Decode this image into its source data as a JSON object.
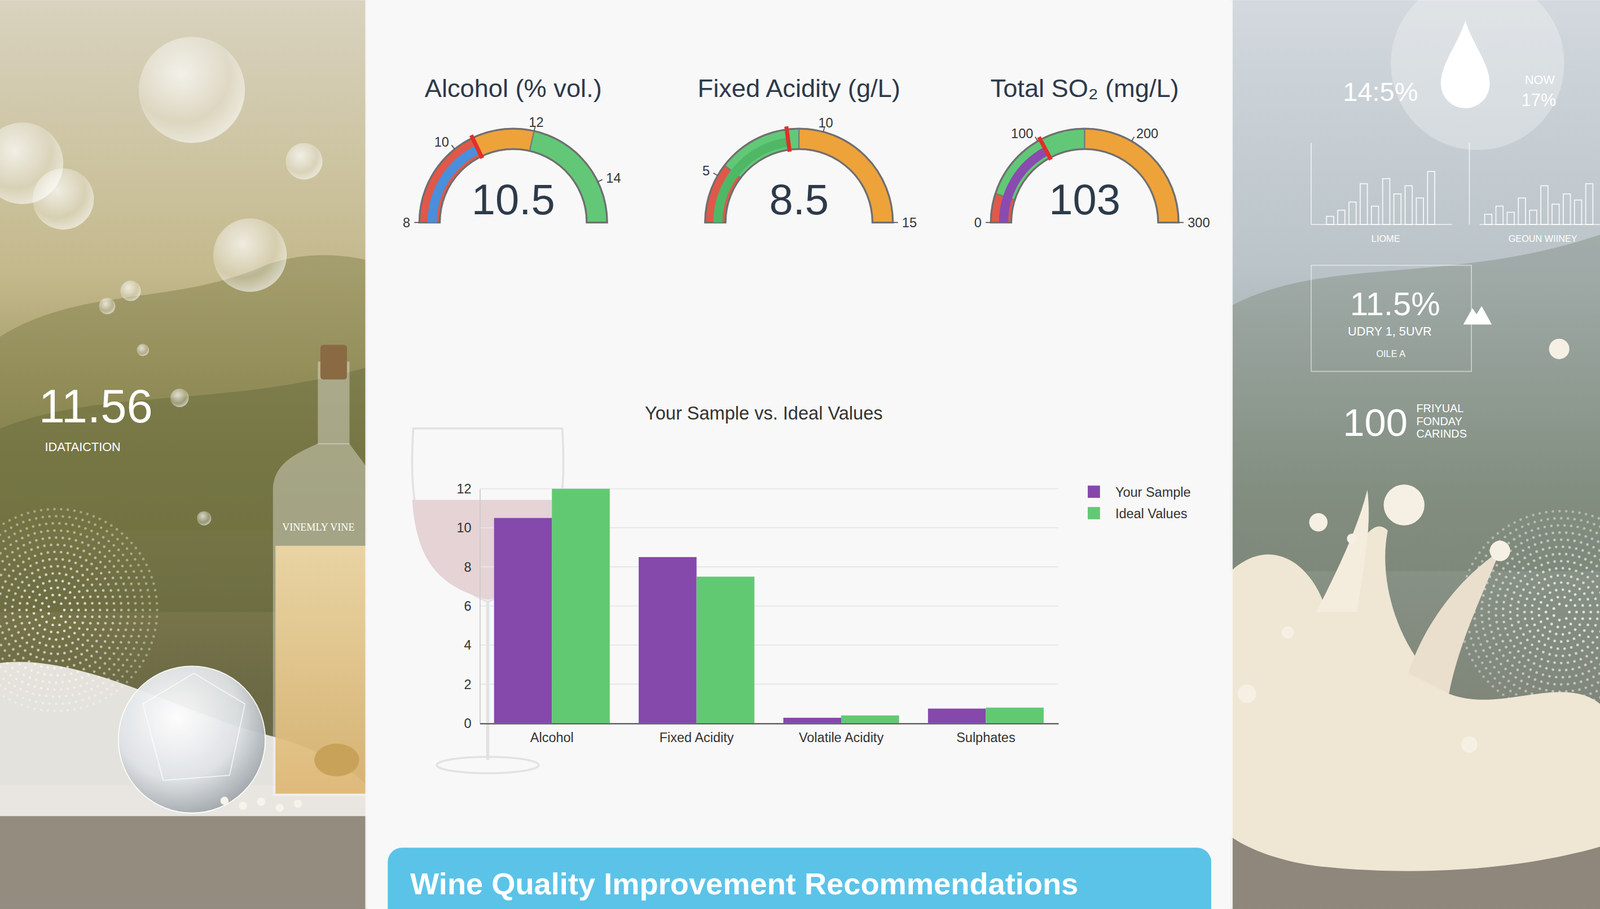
{
  "chart_data": [
    {
      "type": "gauge",
      "title": "Alcohol (% vol.)",
      "value": 10.5,
      "ylim": [
        8,
        15
      ],
      "yticks": [
        8,
        10,
        12,
        14
      ],
      "color": "#4a8fdc",
      "bands": [
        {
          "from": 8,
          "to": 10.5,
          "color": "#e0584a"
        },
        {
          "from": 10.5,
          "to": 12,
          "color": "#eea23a"
        },
        {
          "from": 12,
          "to": 15,
          "color": "#62c877"
        }
      ]
    },
    {
      "type": "gauge",
      "title": "Fixed Acidity (g/L)",
      "value": 8.5,
      "ylim": [
        3,
        15
      ],
      "yticks": [
        5,
        10,
        15
      ],
      "color": "#4fb866",
      "bands": [
        {
          "from": 3,
          "to": 5.5,
          "color": "#e0584a"
        },
        {
          "from": 5.5,
          "to": 9,
          "color": "#62c877"
        },
        {
          "from": 9,
          "to": 15,
          "color": "#eea23a"
        }
      ]
    },
    {
      "type": "gauge",
      "title": "Total SO₂ (mg/L)",
      "value": 103,
      "ylim": [
        0,
        300
      ],
      "yticks": [
        0,
        100,
        200,
        300
      ],
      "color": "#8a4bb0",
      "bands": [
        {
          "from": 0,
          "to": 30,
          "color": "#e0584a"
        },
        {
          "from": 30,
          "to": 150,
          "color": "#62c877"
        },
        {
          "from": 150,
          "to": 300,
          "color": "#eea23a"
        }
      ]
    },
    {
      "type": "bar",
      "title": "Your Sample vs. Ideal Values",
      "categories": [
        "Alcohol",
        "Fixed Acidity",
        "Volatile Acidity",
        "Sulphates"
      ],
      "series": [
        {
          "name": "Your Sample",
          "color": "#8548ab",
          "values": [
            10.5,
            8.5,
            0.28,
            0.75
          ]
        },
        {
          "name": "Ideal Values",
          "color": "#62c973",
          "values": [
            12,
            7.5,
            0.4,
            0.8
          ]
        }
      ],
      "ylim": [
        0,
        12
      ],
      "yticks": [
        0,
        2,
        4,
        6,
        8,
        10,
        12
      ],
      "grid": true,
      "legend": "right"
    }
  ],
  "panels": {
    "left": {
      "metric": "11.56",
      "metric_label": "IDATAICTION",
      "bottle_label": "VINEMLY VINE"
    },
    "right": {
      "top_metric": "14:5%",
      "now_label": "NOW",
      "now_value": "17%",
      "chart_labels": [
        "LIOME",
        "GEOUN WIINEY"
      ],
      "card_value": "11.5%",
      "card_line1": "UDRY 1, 5UVR",
      "card_line2": "OILE A",
      "bottom_metric": "100",
      "bottom_caption": [
        "FRIYUAL",
        "FONDAY",
        "CARINDS"
      ]
    }
  },
  "banner": {
    "title": "Wine Quality Improvement Recommendations"
  }
}
